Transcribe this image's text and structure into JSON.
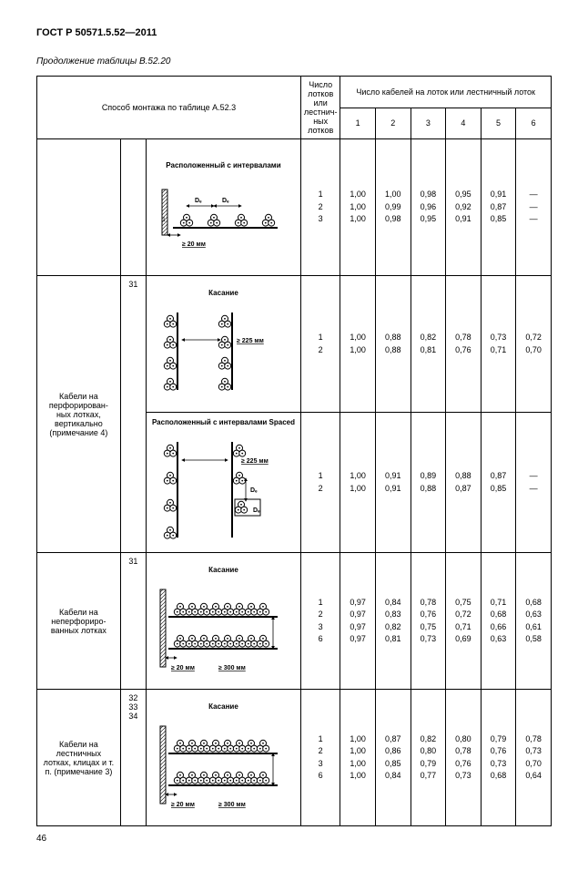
{
  "doc_title": "ГОСТ Р 50571.5.52—2011",
  "subtitle": "Продолжение таблицы B.52.20",
  "page_number": "46",
  "header": {
    "method": "Способ монтажа по таблице A.52.3",
    "trays": "Число лотков или лестнич-ных лотков",
    "cables": "Число кабелей на лоток или лестничный лоток",
    "cols": [
      "1",
      "2",
      "3",
      "4",
      "5",
      "6"
    ]
  },
  "rows": [
    {
      "label": "",
      "ref": "",
      "diag_title": "Расположенный с интервалами",
      "diag_type": "horiz_spaced",
      "trays": [
        "1",
        "2",
        "3"
      ],
      "vals": [
        [
          "1,00",
          "1,00",
          "0,98",
          "0,95",
          "0,91",
          "—"
        ],
        [
          "1,00",
          "0,99",
          "0,96",
          "0,92",
          "0,87",
          "—"
        ],
        [
          "1,00",
          "0,98",
          "0,95",
          "0,91",
          "0,85",
          "—"
        ]
      ]
    },
    {
      "label": "Кабели на перфорирован-ных лотках, вертикально (примечание 4)",
      "ref": "31",
      "diag_title": "Касание",
      "diag_type": "vert_touch",
      "trays": [
        "1",
        "2"
      ],
      "vals": [
        [
          "1,00",
          "0,88",
          "0,82",
          "0,78",
          "0,73",
          "0,72"
        ],
        [
          "1,00",
          "0,88",
          "0,81",
          "0,76",
          "0,71",
          "0,70"
        ]
      ]
    },
    {
      "label": "",
      "ref": "",
      "diag_title": "Расположенный с интервалами Spaced",
      "diag_type": "vert_spaced",
      "trays": [
        "1",
        "2"
      ],
      "vals": [
        [
          "1,00",
          "0,91",
          "0,89",
          "0,88",
          "0,87",
          "—"
        ],
        [
          "1,00",
          "0,91",
          "0,88",
          "0,87",
          "0,85",
          "—"
        ]
      ]
    },
    {
      "label": "Кабели на неперфориро-ванных лотках",
      "ref": "31",
      "diag_title": "Касание",
      "diag_type": "horiz_touch",
      "trays": [
        "1",
        "2",
        "3",
        "6"
      ],
      "vals": [
        [
          "0,97",
          "0,84",
          "0,78",
          "0,75",
          "0,71",
          "0,68"
        ],
        [
          "0,97",
          "0,83",
          "0,76",
          "0,72",
          "0,68",
          "0,63"
        ],
        [
          "0,97",
          "0,82",
          "0,75",
          "0,71",
          "0,66",
          "0,61"
        ],
        [
          "0,97",
          "0,81",
          "0,73",
          "0,69",
          "0,63",
          "0,58"
        ]
      ]
    },
    {
      "label": "Кабели на лестничных лотках, клицах и т. п. (примечание 3)",
      "ref": "32\n33\n34",
      "diag_title": "Касание",
      "diag_type": "horiz_touch_ladder",
      "trays": [
        "1",
        "2",
        "3",
        "6"
      ],
      "vals": [
        [
          "1,00",
          "0,87",
          "0,82",
          "0,80",
          "0,79",
          "0,78"
        ],
        [
          "1,00",
          "0,86",
          "0,80",
          "0,78",
          "0,76",
          "0,73"
        ],
        [
          "1,00",
          "0,85",
          "0,79",
          "0,76",
          "0,73",
          "0,70"
        ],
        [
          "1,00",
          "0,84",
          "0,77",
          "0,73",
          "0,68",
          "0,64"
        ]
      ]
    }
  ],
  "dims": {
    "ge20": "≥ 20 мм",
    "ge225": "≥ 225 мм",
    "ge300": "≥ 300 мм",
    "de": "Dₑ"
  }
}
